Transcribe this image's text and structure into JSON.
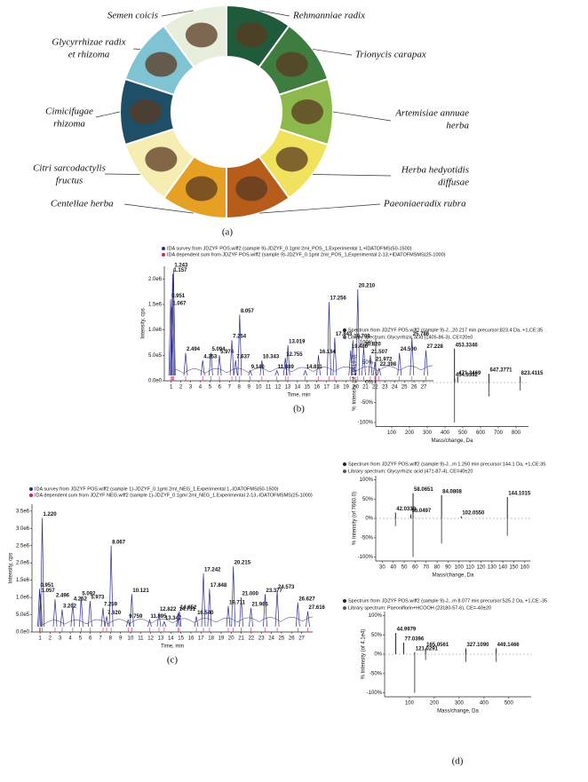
{
  "figure_a": {
    "panel_label": "(a)",
    "herbs": [
      {
        "name": [
          "Rehmanniae radix"
        ],
        "color": "#1f5a3a"
      },
      {
        "name": [
          "Trionycis carapax"
        ],
        "color": "#3f7c40"
      },
      {
        "name": [
          "Artemisiae annuae",
          "herba"
        ],
        "color": "#8cb84c"
      },
      {
        "name": [
          "Herba hedyotidis",
          "diffusae"
        ],
        "color": "#f0e25c"
      },
      {
        "name": [
          "Paeoniaeradix rubra"
        ],
        "color": "#b65d1c"
      },
      {
        "name": [
          "Centellae herba"
        ],
        "color": "#e6a023"
      },
      {
        "name": [
          "Citri sarcodactylis",
          "fructus"
        ],
        "color": "#f6edb2"
      },
      {
        "name": [
          "Cimicifugae",
          "rhizoma"
        ],
        "color": "#1f4f66"
      },
      {
        "name": [
          "Glycyrrhizae radix",
          "et rhizoma"
        ],
        "color": "#80c4d4"
      },
      {
        "name": [
          "Semen coicis"
        ],
        "color": "#e7efdc"
      }
    ]
  },
  "panel_d_label": "(d)",
  "chart_data": [
    {
      "type": "chromatogram",
      "panel_label": "(b)",
      "legend": [
        {
          "name": "IDA survey from JDZYF POS.wiff2 (sample 9)-JDZYF_0.1gml 2ml_POS_1,Experimental 1,+IDATOFMS(50-1500)",
          "color": "#2b2b8c"
        },
        {
          "name": "IDA dependent sum from JDZYF POS.wiff2 (sample 9)-JDZYF_0.1gml 2ml_POS_1,Experimental 2-13,+IDATOFMSMS(25-1000)",
          "color": "#d0206a"
        }
      ],
      "x_label": "Time, min",
      "y_label": "Intensity, cps",
      "color": "#2b2b8c",
      "xlim": [
        0.3,
        28
      ],
      "ylim": [
        0,
        2250000
      ],
      "xticks": [
        1,
        2,
        3,
        4,
        5,
        6,
        7,
        8,
        9,
        10,
        11,
        12,
        13,
        14,
        15,
        16,
        17,
        18,
        19,
        20,
        21,
        22,
        23,
        24,
        25,
        26,
        27
      ],
      "yticks": [
        {
          "value": 0,
          "label": "0.0e0"
        },
        {
          "value": 500000,
          "label": "5.0e5"
        },
        {
          "value": 1000000,
          "label": "1.0e6"
        },
        {
          "value": 1500000,
          "label": "1.5e6"
        },
        {
          "value": 2000000,
          "label": "2.0e6"
        }
      ],
      "x": [
        1.157,
        1.243,
        0.951,
        1.067,
        2.494,
        4.253,
        5.094,
        5.974,
        7.254,
        7.637,
        8.057,
        9.14,
        10.343,
        11.889,
        12.755,
        13.019,
        14.811,
        16.164,
        17.256,
        17.843,
        19.48,
        19.709,
        20.21,
        20.82,
        21.507,
        21.972,
        22.398,
        24.5,
        25.786,
        27.228
      ],
      "x_labels": [
        "1.157",
        "1.243",
        "0.951",
        "1.067",
        "2.494",
        "4.253",
        "5.094",
        "5.974",
        "7.254",
        "7.637",
        "8.057",
        "9.140",
        "10.343",
        "11.889",
        "12.755",
        "13.019",
        "14.811",
        "16.164",
        "17.256",
        "17.843",
        "19.480",
        "19.709",
        "20.210",
        "20.820",
        "21.507",
        "21.972",
        "22.398",
        "24.500",
        "25.786",
        "27.228"
      ],
      "values": [
        2100000,
        2200000,
        1600000,
        1450000,
        550000,
        400000,
        550000,
        500000,
        800000,
        400000,
        1300000,
        200000,
        400000,
        200000,
        450000,
        700000,
        200000,
        500000,
        1550000,
        850000,
        600000,
        800000,
        1800000,
        650000,
        500000,
        350000,
        250000,
        550000,
        850000,
        600000
      ]
    },
    {
      "type": "chromatogram",
      "panel_label": "(c)",
      "legend": [
        {
          "name": "IDA survey from JDZYF POS.wiff2 (sample 1)-JDZYF_0.1gml 2ml_NEG_1,Experimental 1,-IDATOFMS(50-1500)",
          "color": "#2b2b8c"
        },
        {
          "name": "IDA dependent sum from JDZYF NEG.wiff2 (sample 1)-JDZYF_0.1gml 2ml_NEG_1,Experimental 2-13,-IDATOFMSMS(25-1000)",
          "color": "#d0206a"
        }
      ],
      "x_label": "Time, min",
      "y_label": "Intensity, cps",
      "color": "#2b2b8c",
      "xlim": [
        0.2,
        28.1
      ],
      "ylim": [
        0,
        3700000
      ],
      "xticks": [
        1,
        2,
        3,
        4,
        5,
        6,
        7,
        8,
        9,
        10,
        11,
        12,
        13,
        14,
        15,
        16,
        17,
        18,
        19,
        20,
        21,
        22,
        23,
        24,
        25,
        26,
        27
      ],
      "yticks": [
        {
          "value": 0,
          "label": "0.0e0"
        },
        {
          "value": 500000,
          "label": "5.0e5"
        },
        {
          "value": 1000000,
          "label": "1.0e6"
        },
        {
          "value": 1500000,
          "label": "1.5e6"
        },
        {
          "value": 2000000,
          "label": "2.0e6"
        },
        {
          "value": 2500000,
          "label": "2.5e6"
        },
        {
          "value": 3000000,
          "label": "3.0e6"
        },
        {
          "value": 3500000,
          "label": "3.5e6"
        }
      ],
      "x": [
        1.22,
        0.951,
        1.057,
        2.496,
        3.202,
        4.252,
        5.092,
        5.973,
        7.259,
        7.62,
        8.067,
        9.759,
        10.121,
        11.895,
        12.822,
        13.347,
        14.731,
        14.852,
        16.54,
        17.242,
        17.848,
        19.711,
        20.215,
        21,
        21.966,
        23.377,
        24.573,
        26.627,
        27.616
      ],
      "x_labels": [
        "1.220",
        "0.951",
        "1.057",
        "2.496",
        "3.202",
        "4.252",
        "5.092",
        "5.973",
        "7.259",
        "7.620",
        "8.067",
        "9.759",
        "10.121",
        "11.895",
        "12.822",
        "13.347",
        "14.731",
        "14.852",
        "16.540",
        "17.242",
        "17.848",
        "19.711",
        "20.215",
        "21.000",
        "21.966",
        "23.377",
        "24.573",
        "26.627",
        "27.616"
      ],
      "values": [
        3300000,
        1250000,
        1100000,
        950000,
        650000,
        850000,
        1000000,
        900000,
        700000,
        450000,
        2500000,
        350000,
        1100000,
        350000,
        550000,
        300000,
        550000,
        600000,
        450000,
        1700000,
        1250000,
        750000,
        1900000,
        1000000,
        700000,
        1100000,
        1200000,
        850000,
        600000
      ]
    },
    {
      "type": "spectrum",
      "x_label": "Mass/change, Da",
      "y_label": "% Intensity (of 18419.0)",
      "xlim": [
        10,
        870
      ],
      "ylim": [
        -110,
        110
      ],
      "xticks": [
        100,
        200,
        300,
        400,
        500,
        600,
        700,
        800
      ],
      "yticks": [
        {
          "value": 100,
          "label": "100%"
        },
        {
          "value": 50,
          "label": "50%"
        },
        {
          "value": 0,
          "label": "0%"
        },
        {
          "value": -50,
          "label": "-50%"
        },
        {
          "value": -100,
          "label": "-100%"
        }
      ],
      "series": [
        {
          "name": "Spectrum from JDZYF POS.wiff2 (sample 9)-J...20.217 min precursor:823.4 Da, +1,CE:35",
          "color": "#222222",
          "x": [
            454.3392,
            453.3346,
            471.3469,
            647.3771,
            823.4115
          ],
          "x_labels": [
            "454.3392",
            "453.3346",
            "471.3469",
            "647.3771",
            "823.4115"
          ],
          "values": [
            10,
            85,
            15,
            22,
            15
          ]
        },
        {
          "name": "Library spectrum:     Glycyrrhizic acid (1405-86-3), CE=20±0",
          "color": "#555555",
          "x": [
            453.3346,
            647.3771,
            823.4115
          ],
          "values": [
            -100,
            -35,
            -20
          ]
        }
      ]
    },
    {
      "type": "spectrum",
      "x_label": "Mass/change, Da",
      "y_label": "% Intensity (of 7660.0)",
      "xlim": [
        24,
        165
      ],
      "ylim": [
        -110,
        110
      ],
      "xticks": [
        30,
        40,
        50,
        60,
        70,
        80,
        90,
        100,
        110,
        120,
        130,
        140,
        150,
        160
      ],
      "yticks": [
        {
          "value": 100,
          "label": "100%"
        },
        {
          "value": 50,
          "label": "50%"
        },
        {
          "value": 0,
          "label": "0%"
        },
        {
          "value": -50,
          "label": "-50%"
        },
        {
          "value": -100,
          "label": "-100%"
        }
      ],
      "series": [
        {
          "name": "Spectrum from JDZYF POS.wiff2 (sample 9)-J...m 1.250 min precursor:144.1 Da, +1,CE:35",
          "color": "#222222",
          "x": [
            42.0339,
            58.0651,
            56.0497,
            84.0808,
            102.055,
            144.1015
          ],
          "x_labels": [
            "42.0339",
            "58.0651",
            "56.0497",
            "84.0808",
            "102.0550",
            "144.1015"
          ],
          "values": [
            15,
            65,
            10,
            60,
            5,
            55
          ]
        },
        {
          "name": "Library spectrum:     Glycyrrhizic acid (471-87-4), CE=40±20",
          "color": "#555555",
          "x": [
            42.0339,
            58.0651,
            84.0808,
            144.1015
          ],
          "values": [
            -20,
            -100,
            -65,
            -45
          ]
        }
      ]
    },
    {
      "type": "spectrum",
      "x_label": "Mass/change, Da",
      "y_label": "% Intensity (of 4.1e4)",
      "xlim": [
        0,
        590
      ],
      "ylim": [
        -110,
        110
      ],
      "xticks": [
        100,
        200,
        300,
        400,
        500
      ],
      "yticks": [
        {
          "value": 100,
          "label": "100%"
        },
        {
          "value": 50,
          "label": "50%"
        },
        {
          "value": 0,
          "label": "0%"
        },
        {
          "value": -50,
          "label": "-50%"
        },
        {
          "value": -100,
          "label": "-100%"
        }
      ],
      "series": [
        {
          "name": "Spectrum from JDZYF POS.wiff2 (sample 9)-J...m 8.077 min precursor:525.2 Da, +1,CE:-35",
          "color": "#222222",
          "x": [
            44.9979,
            77.0396,
            121.0291,
            165.0561,
            327.109,
            449.1466
          ],
          "x_labels": [
            "44.9979",
            "77.0396",
            "121.0291",
            "165.0561",
            "327.1090",
            "449.1466"
          ],
          "values": [
            55,
            30,
            5,
            15,
            15,
            15
          ]
        },
        {
          "name": "Library spectrum:     Paeoniflorin+HCOOH (23180-57-6), CE=-40±20",
          "color": "#555555",
          "x": [
            121.0291,
            165.0561,
            327.109,
            449.1466
          ],
          "values": [
            -100,
            -15,
            -20,
            -20
          ]
        }
      ]
    }
  ]
}
